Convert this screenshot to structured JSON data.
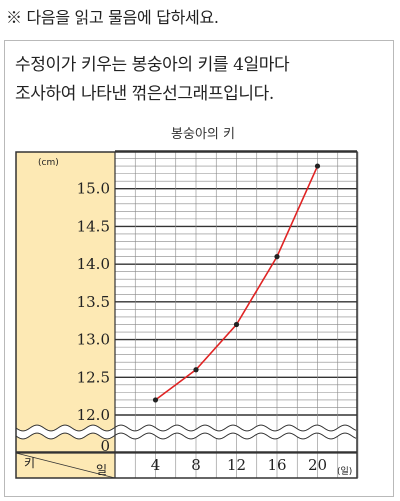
{
  "instruction": "※ 다음을 읽고 물음에 답하세요.",
  "description": {
    "line1": "수정이가 키우는 봉숭아의 키를 4일마다",
    "line2": "조사하여 나타낸 꺾은선그래프입니다."
  },
  "colors": {
    "line": "#e02424",
    "marker": "#222222",
    "label_panel": "#fde9b4",
    "grid": "#555555"
  },
  "chart_data": {
    "type": "line",
    "title": "봉숭아의 키",
    "x": [
      4,
      8,
      12,
      16,
      20
    ],
    "x_tick_labels": [
      "4",
      "8",
      "12",
      "16",
      "20"
    ],
    "y": [
      12.2,
      12.6,
      13.2,
      14.1,
      15.3
    ],
    "y_tick_labels": [
      "12.0",
      "12.5",
      "13.0",
      "13.5",
      "14.0",
      "14.5",
      "15.0"
    ],
    "y_zero_label": "0",
    "ylim": [
      12.0,
      15.5
    ],
    "y_unit": "(cm)",
    "x_unit": "(일)",
    "header_left": "키",
    "header_right": "일",
    "grid": true,
    "axis_break": true
  }
}
